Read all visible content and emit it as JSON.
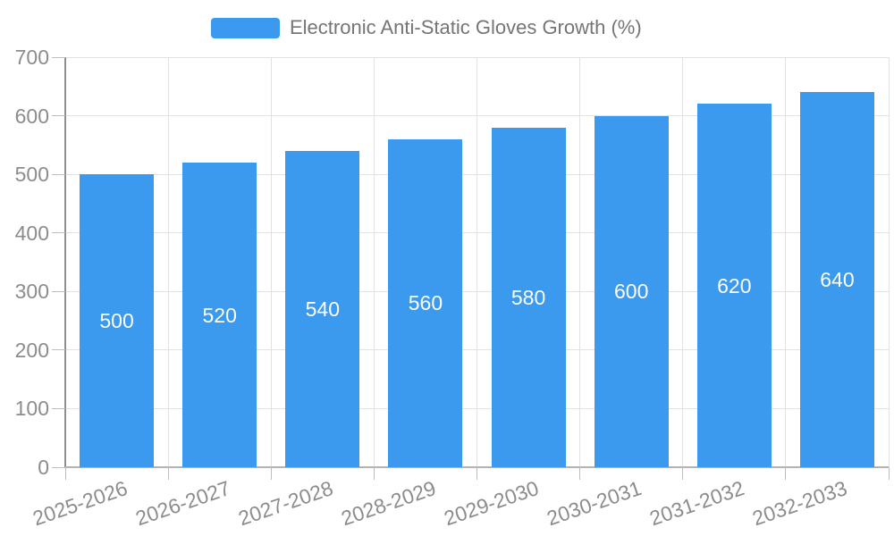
{
  "chart_data": {
    "type": "bar",
    "title": "Electronic Anti-Static Gloves Growth (%)",
    "series_name": "Electronic Anti-Static Gloves Growth (%)",
    "categories": [
      "2025-2026",
      "2026-2027",
      "2027-2028",
      "2028-2029",
      "2029-2030",
      "2030-2031",
      "2031-2032",
      "2032-2033"
    ],
    "values": [
      500,
      520,
      540,
      560,
      580,
      600,
      620,
      640
    ],
    "bar_value_labels": [
      "500",
      "520",
      "540",
      "560",
      "580",
      "600",
      "620",
      "640"
    ],
    "xlabel": "",
    "ylabel": "",
    "ylim": [
      0,
      700
    ],
    "ytick_step": 100,
    "yticks": [
      0,
      100,
      200,
      300,
      400,
      500,
      600,
      700
    ],
    "grid": true,
    "legend_position": "top-center",
    "bar_labels_visible": true,
    "x_label_rotation_deg": -19,
    "colors": {
      "bar": "#3B99EE",
      "bar_label": "#FFFFFF",
      "axis_label": "#8C8C8C",
      "legend_text": "#757575",
      "grid_line": "#E2E2E2",
      "axis_line_y": "#8F8F8F",
      "axis_line_x": "#B3B3B3",
      "tick": "#BDBDBD",
      "background": "#FFFFFF"
    }
  }
}
